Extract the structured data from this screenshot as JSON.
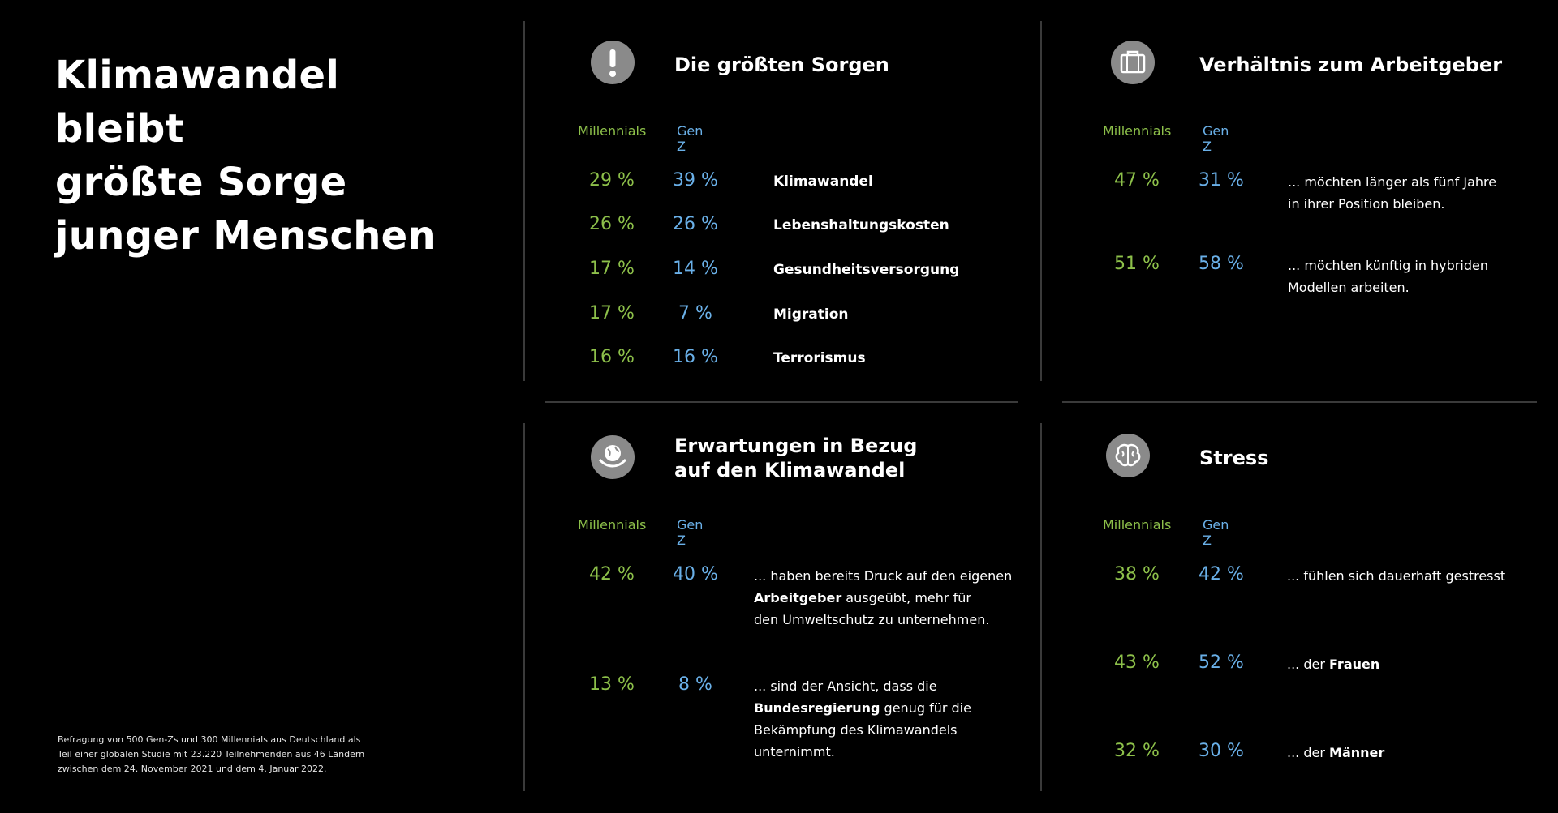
{
  "headline": [
    "Klimawandel bleibt",
    "größte Sorge",
    "junger Menschen"
  ],
  "footnote": [
    "Befragung von 500 Gen-Zs und 300 Millennials aus Deutschland als",
    "Teil einer globalen Studie mit 23.220 Teilnehmenden aus 46 Ländern",
    "zwischen dem 24. November 2021 und dem 4. Januar 2022."
  ],
  "colors": {
    "millennials": "#8dc04a",
    "genz": "#6ab0e8",
    "icon_bg": "#8a8a8a"
  },
  "panels": {
    "sorgen": {
      "icon": "exclamation-icon",
      "title": [
        "Die größten Sorgen"
      ],
      "col_millennials": "Millennials",
      "col_genz": "Gen Z",
      "rows": [
        {
          "m": "29 %",
          "g": "39 %",
          "label": "Klimawandel"
        },
        {
          "m": "26 %",
          "g": "26 %",
          "label": "Lebenshaltungskosten"
        },
        {
          "m": "17 %",
          "g": "14 %",
          "label": "Gesundheitsversorgung"
        },
        {
          "m": "17 %",
          "g": "7 %",
          "label": "Migration"
        },
        {
          "m": "16 %",
          "g": "16 %",
          "label": "Terrorismus"
        }
      ]
    },
    "arbeitgeber": {
      "icon": "briefcase-icon",
      "title": [
        "Verhältnis zum Arbeitgeber"
      ],
      "col_millennials": "Millennials",
      "col_genz": "Gen Z",
      "rows": [
        {
          "m": "47 %",
          "g": "31 %",
          "lines": [
            [
              [
                "... möchten länger als fünf Jahre",
                false
              ]
            ],
            [
              [
                "in ihrer Position bleiben.",
                false
              ]
            ]
          ]
        },
        {
          "m": "51 %",
          "g": "58 %",
          "lines": [
            [
              [
                "... möchten künftig in hybriden",
                false
              ]
            ],
            [
              [
                "Modellen arbeiten.",
                false
              ]
            ]
          ]
        }
      ]
    },
    "klima": {
      "icon": "earth-hand-icon",
      "title": [
        "Erwartungen in Bezug",
        "auf den Klimawandel"
      ],
      "col_millennials": "Millennials",
      "col_genz": "Gen Z",
      "rows": [
        {
          "m": "42 %",
          "g": "40 %",
          "lines": [
            [
              [
                "... haben bereits Druck auf den eigenen",
                false
              ]
            ],
            [
              [
                "Arbeitgeber",
                true
              ],
              [
                " ausgeübt, mehr für",
                false
              ]
            ],
            [
              [
                "den Umweltschutz zu unternehmen.",
                false
              ]
            ]
          ]
        },
        {
          "m": "13 %",
          "g": "8 %",
          "lines": [
            [
              [
                "... sind der Ansicht, dass die",
                false
              ]
            ],
            [
              [
                "Bundesregierung",
                true
              ],
              [
                " genug für die",
                false
              ]
            ],
            [
              [
                "Bekämpfung des Klimawandels",
                false
              ]
            ],
            [
              [
                "unternimmt.",
                false
              ]
            ]
          ]
        }
      ]
    },
    "stress": {
      "icon": "brain-icon",
      "title": [
        "Stress"
      ],
      "col_millennials": "Millennials",
      "col_genz": "Gen Z",
      "rows": [
        {
          "m": "38 %",
          "g": "42 %",
          "lines": [
            [
              [
                "... fühlen sich dauerhaft gestresst",
                false
              ]
            ]
          ]
        },
        {
          "m": "43 %",
          "g": "52 %",
          "lines": [
            [
              [
                "... der ",
                false
              ],
              [
                "Frauen",
                true
              ]
            ]
          ]
        },
        {
          "m": "32 %",
          "g": "30 %",
          "lines": [
            [
              [
                "... der ",
                false
              ],
              [
                "Männer",
                true
              ]
            ]
          ]
        }
      ]
    }
  }
}
